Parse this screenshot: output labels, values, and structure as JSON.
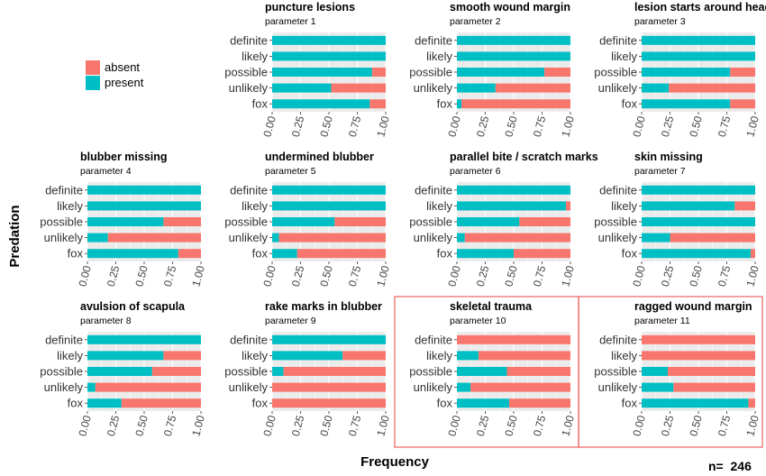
{
  "axis": {
    "ylabel": "Predation",
    "xlabel": "Frequency",
    "n_label": "n=  246"
  },
  "legend": {
    "items": [
      {
        "label": "absent",
        "color": "#F8766D"
      },
      {
        "label": "present",
        "color": "#00BFC4"
      }
    ]
  },
  "colors": {
    "absent": "#F8766D",
    "present": "#00BFC4",
    "panel_bg": "#EBEBEB",
    "highlight_border": "#F08080"
  },
  "chart_data": {
    "type": "bar",
    "orientation": "horizontal",
    "stacked": "proportion",
    "categories": [
      "definite",
      "likely",
      "possible",
      "unlikely",
      "fox"
    ],
    "xlim": [
      0,
      1
    ],
    "x_ticks": [
      "0.00",
      "0.25",
      "0.50",
      "0.75",
      "1.00"
    ],
    "xlabel": "Frequency",
    "ylabel": "Predation",
    "legend_position": "top-left",
    "series_order": [
      "absent",
      "present"
    ],
    "panels": [
      {
        "title": "puncture lesions",
        "subtitle": "parameter 1",
        "highlight": false,
        "present": [
          1.0,
          1.0,
          0.88,
          0.52,
          0.86
        ]
      },
      {
        "title": "smooth wound margin",
        "subtitle": "parameter 2",
        "highlight": false,
        "present": [
          1.0,
          1.0,
          0.77,
          0.34,
          0.04
        ]
      },
      {
        "title": "lesion starts around head",
        "subtitle": "parameter 3",
        "highlight": false,
        "present": [
          1.0,
          1.0,
          0.78,
          0.24,
          0.78
        ]
      },
      {
        "title": "blubber missing",
        "subtitle": "parameter 4",
        "highlight": false,
        "present": [
          1.0,
          1.0,
          0.67,
          0.18,
          0.8
        ]
      },
      {
        "title": "undermined blubber",
        "subtitle": "parameter 5",
        "highlight": false,
        "present": [
          1.0,
          1.0,
          0.55,
          0.06,
          0.22
        ]
      },
      {
        "title": "parallel bite / scratch marks",
        "subtitle": "parameter 6",
        "highlight": false,
        "present": [
          1.0,
          0.96,
          0.55,
          0.07,
          0.5
        ]
      },
      {
        "title": "skin missing",
        "subtitle": "parameter 7",
        "highlight": false,
        "present": [
          1.0,
          0.82,
          1.0,
          0.25,
          0.96
        ]
      },
      {
        "title": "avulsion of scapula",
        "subtitle": "parameter 8",
        "highlight": false,
        "present": [
          1.0,
          0.67,
          0.57,
          0.07,
          0.3
        ]
      },
      {
        "title": "rake marks in blubber",
        "subtitle": "parameter 9",
        "highlight": false,
        "present": [
          1.0,
          0.62,
          0.1,
          0.0,
          0.0
        ]
      },
      {
        "title": "skeletal trauma",
        "subtitle": "parameter 10",
        "highlight": true,
        "present": [
          0.0,
          0.19,
          0.44,
          0.12,
          0.46
        ]
      },
      {
        "title": "ragged wound margin",
        "subtitle": "parameter 11",
        "highlight": true,
        "present": [
          0.0,
          0.0,
          0.23,
          0.28,
          0.94
        ]
      }
    ]
  }
}
